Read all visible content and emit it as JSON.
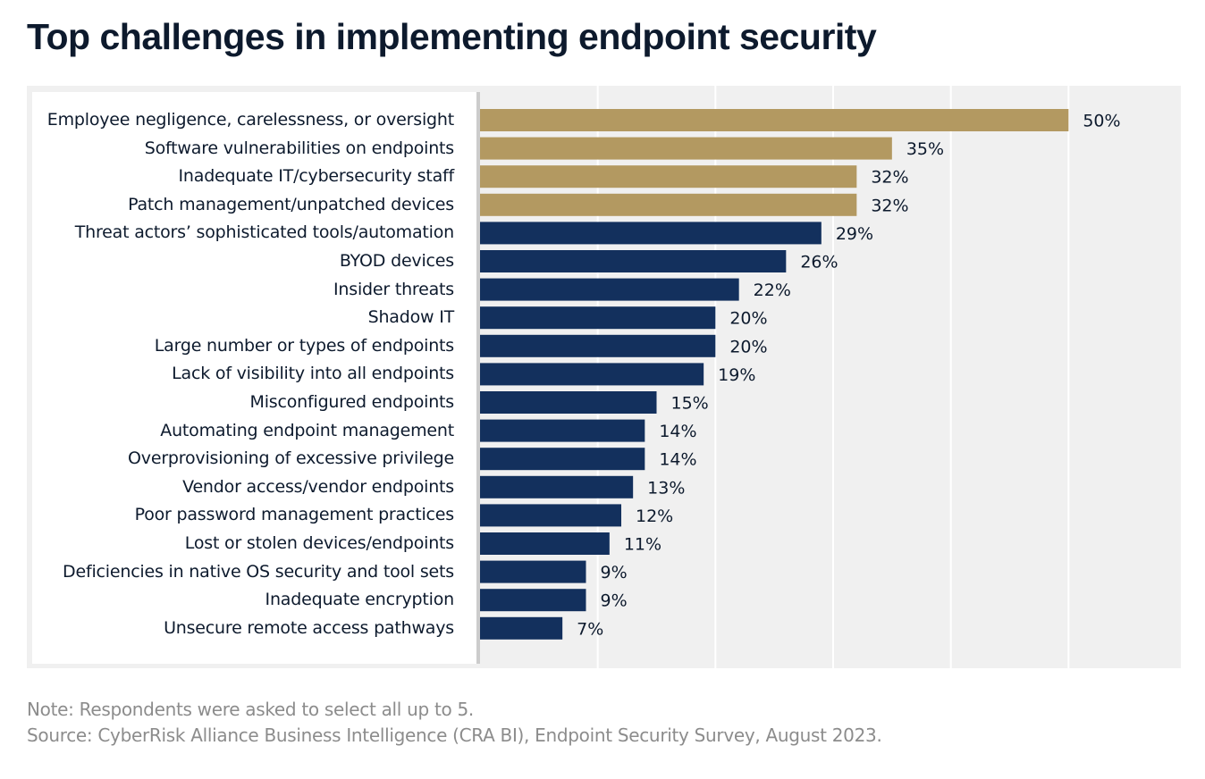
{
  "chart_data": {
    "type": "bar",
    "orientation": "horizontal",
    "title": "Top challenges in implementing endpoint security",
    "xlabel": "",
    "ylabel": "",
    "xlim": [
      0,
      60
    ],
    "grid": true,
    "legend": null,
    "value_suffix": "%",
    "categories": [
      "Employee negligence, carelessness, or oversight",
      "Software vulnerabilities on endpoints",
      "Inadequate IT/cybersecurity staff",
      "Patch management/unpatched devices",
      "Threat actors’ sophisticated tools/automation",
      "BYOD devices",
      "Insider threats",
      "Shadow IT",
      "Large number or types of endpoints",
      "Lack of visibility into all endpoints",
      "Misconfigured endpoints",
      "Automating endpoint management",
      "Overprovisioning of excessive privilege",
      "Vendor access/vendor endpoints",
      "Poor password management practices",
      "Lost or stolen devices/endpoints",
      "Deficiencies in native OS security and tool sets",
      "Inadequate encryption",
      "Unsecure remote access pathways"
    ],
    "values": [
      50,
      35,
      32,
      32,
      29,
      26,
      22,
      20,
      20,
      19,
      15,
      14,
      14,
      13,
      12,
      11,
      9,
      9,
      7
    ],
    "highlight_top_n": 4,
    "colors": {
      "highlight": "#b39961",
      "default": "#13305d",
      "background": "#f0f0f0",
      "gridline": "#ffffff"
    }
  },
  "notes": {
    "note": "Note: Respondents were asked to select all up to 5.",
    "source": "Source: CyberRisk Alliance Business Intelligence (CRA BI), Endpoint Security Survey, August 2023."
  }
}
